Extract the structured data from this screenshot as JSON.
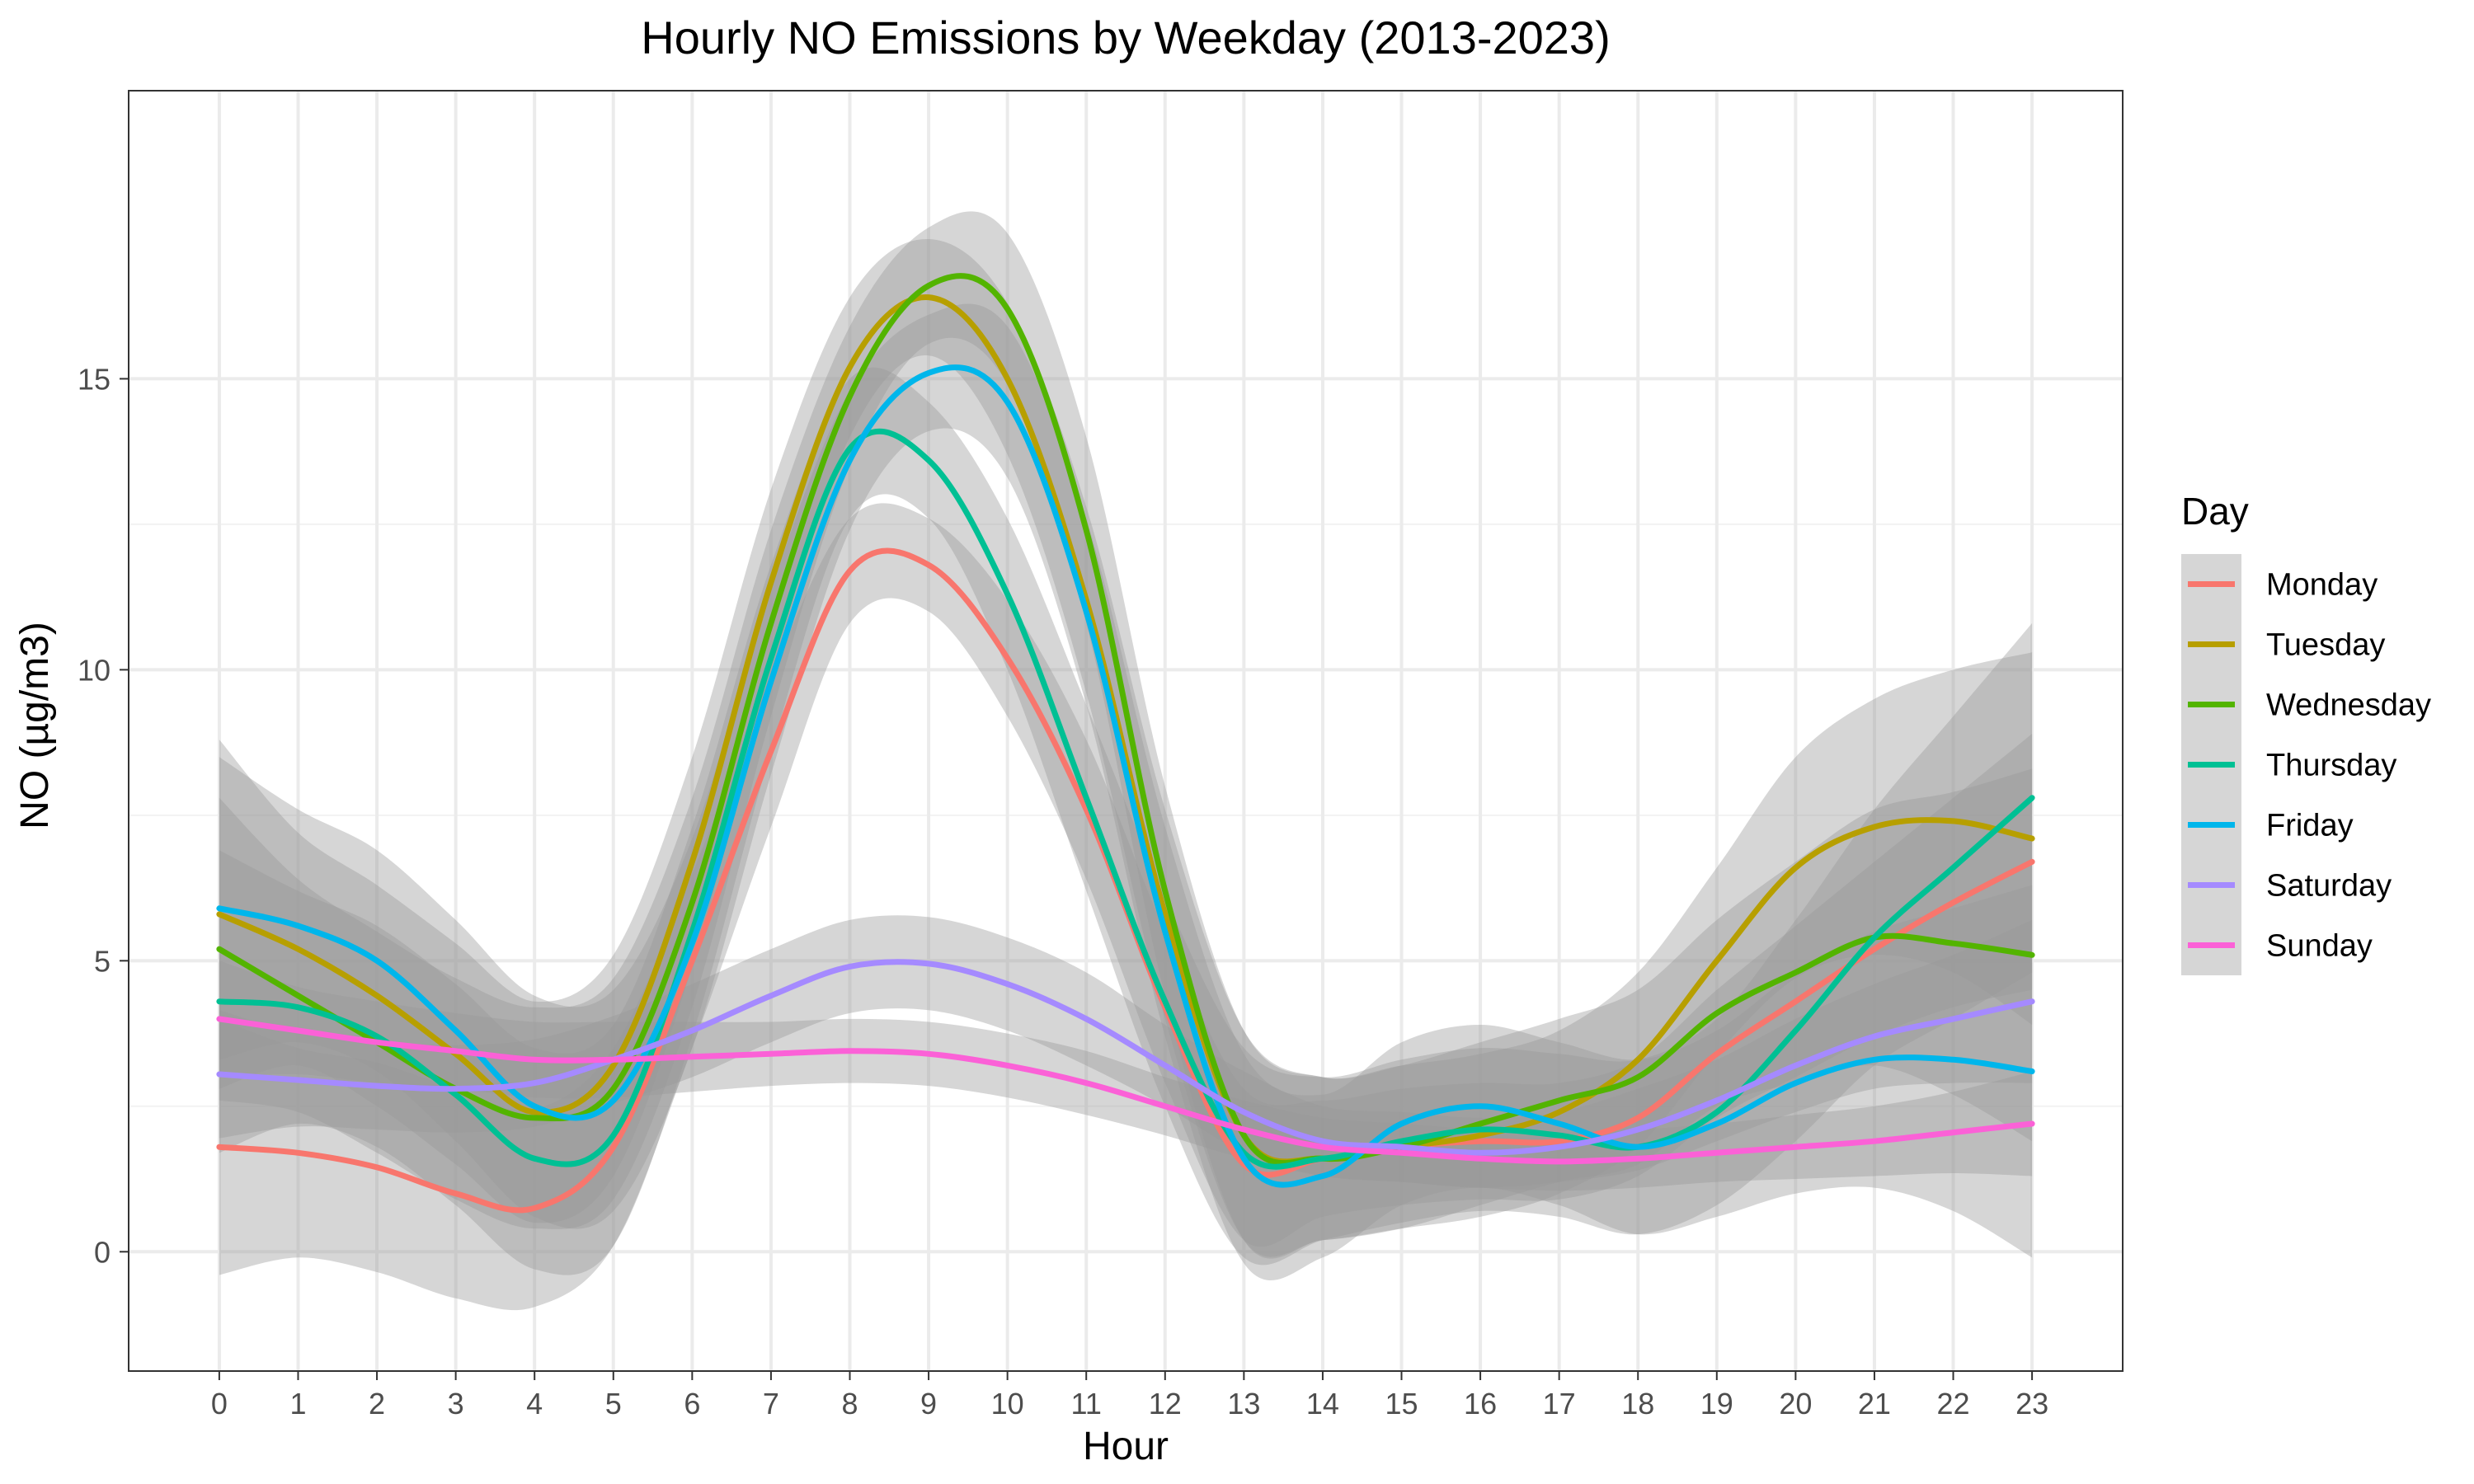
{
  "chart_data": {
    "type": "line",
    "title": "Hourly NO Emissions by Weekday (2013-2023)",
    "xlabel": "Hour",
    "ylabel": "NO (µg/m3)",
    "x": [
      0,
      1,
      2,
      3,
      4,
      5,
      6,
      7,
      8,
      9,
      10,
      11,
      12,
      13,
      14,
      15,
      16,
      17,
      18,
      19,
      20,
      21,
      22,
      23
    ],
    "xlim": [
      -1.15,
      24.15
    ],
    "ylim": [
      -2.05,
      19.95
    ],
    "yticks": [
      0,
      5,
      10,
      15
    ],
    "grid": true,
    "legend_title": "Day",
    "legend_position": "right",
    "confidence_band_color": "#999999",
    "series": [
      {
        "name": "Monday",
        "color": "#F8766D",
        "values": [
          1.8,
          1.7,
          1.45,
          1.0,
          0.75,
          1.8,
          5.0,
          8.6,
          11.7,
          11.8,
          10.2,
          7.6,
          4.2,
          1.5,
          1.6,
          1.8,
          1.9,
          1.9,
          2.3,
          3.4,
          4.3,
          5.2,
          6.0,
          6.7
        ],
        "half_width": [
          2.2,
          1.8,
          1.8,
          1.8,
          1.7,
          1.7,
          1.5,
          1.3,
          0.9,
          0.8,
          1.0,
          1.2,
          1.3,
          1.3,
          1.0,
          1.0,
          1.0,
          1.0,
          1.0,
          1.1,
          1.3,
          1.5,
          1.8,
          2.2
        ]
      },
      {
        "name": "Tuesday",
        "color": "#B79F00",
        "values": [
          5.8,
          5.2,
          4.4,
          3.4,
          2.4,
          3.2,
          6.7,
          11.5,
          15.2,
          16.4,
          15.0,
          11.2,
          5.8,
          2.0,
          1.6,
          1.8,
          2.0,
          2.4,
          3.3,
          5.0,
          6.6,
          7.3,
          7.4,
          7.1
        ],
        "half_width": [
          3.0,
          2.0,
          1.9,
          1.9,
          1.9,
          1.9,
          1.8,
          1.6,
          1.2,
          1.0,
          1.3,
          1.6,
          1.8,
          1.8,
          1.4,
          1.4,
          1.4,
          1.4,
          1.5,
          1.6,
          1.9,
          2.2,
          2.6,
          3.2
        ]
      },
      {
        "name": "Wednesday",
        "color": "#53B400",
        "values": [
          5.2,
          4.4,
          3.6,
          2.8,
          2.3,
          2.8,
          6.0,
          10.8,
          14.7,
          16.6,
          16.2,
          12.4,
          6.2,
          2.0,
          1.6,
          1.8,
          2.2,
          2.6,
          3.0,
          4.1,
          4.8,
          5.4,
          5.3,
          5.1
        ],
        "half_width": [
          2.6,
          2.0,
          1.9,
          1.9,
          1.9,
          1.9,
          1.8,
          1.6,
          1.2,
          1.0,
          1.3,
          1.6,
          1.8,
          1.8,
          1.4,
          1.4,
          1.4,
          1.4,
          1.5,
          1.6,
          1.9,
          2.2,
          2.6,
          3.2
        ]
      },
      {
        "name": "Thursday",
        "color": "#00C094",
        "values": [
          4.3,
          4.2,
          3.7,
          2.7,
          1.6,
          2.0,
          5.5,
          10.2,
          13.8,
          13.6,
          11.3,
          7.8,
          4.3,
          1.7,
          1.6,
          1.9,
          2.1,
          2.0,
          1.8,
          2.4,
          3.8,
          5.4,
          6.6,
          7.8
        ],
        "half_width": [
          2.6,
          2.0,
          1.9,
          1.9,
          1.9,
          1.9,
          1.8,
          1.6,
          1.2,
          1.0,
          1.3,
          1.6,
          1.8,
          1.8,
          1.4,
          1.4,
          1.4,
          1.4,
          1.5,
          1.6,
          1.9,
          2.2,
          2.6,
          3.0
        ]
      },
      {
        "name": "Friday",
        "color": "#00B6EB",
        "values": [
          5.9,
          5.6,
          5.0,
          3.8,
          2.5,
          2.6,
          5.3,
          9.8,
          13.6,
          15.1,
          14.6,
          11.0,
          5.5,
          1.6,
          1.3,
          2.2,
          2.5,
          2.2,
          1.8,
          2.2,
          2.9,
          3.3,
          3.3,
          3.1
        ],
        "half_width": [
          2.6,
          2.0,
          1.9,
          1.9,
          1.9,
          1.9,
          1.8,
          1.6,
          1.2,
          1.0,
          1.3,
          1.6,
          1.8,
          1.8,
          1.4,
          1.4,
          1.4,
          1.4,
          1.5,
          1.6,
          1.9,
          2.2,
          2.6,
          3.2
        ]
      },
      {
        "name": "Saturday",
        "color": "#A58AFF",
        "values": [
          3.05,
          2.95,
          2.85,
          2.8,
          2.9,
          3.3,
          3.8,
          4.4,
          4.9,
          4.95,
          4.6,
          4.0,
          3.2,
          2.4,
          1.9,
          1.8,
          1.7,
          1.8,
          2.1,
          2.6,
          3.2,
          3.7,
          4.0,
          4.3
        ],
        "half_width": [
          1.1,
          0.8,
          0.75,
          0.75,
          0.75,
          0.75,
          0.8,
          0.8,
          0.8,
          0.8,
          0.8,
          0.8,
          0.7,
          0.7,
          0.6,
          0.6,
          0.6,
          0.6,
          0.7,
          0.7,
          0.8,
          0.9,
          1.1,
          1.4
        ]
      },
      {
        "name": "Sunday",
        "color": "#FB61D7",
        "values": [
          4.0,
          3.8,
          3.6,
          3.45,
          3.3,
          3.3,
          3.35,
          3.4,
          3.45,
          3.4,
          3.2,
          2.9,
          2.5,
          2.1,
          1.8,
          1.7,
          1.6,
          1.55,
          1.6,
          1.7,
          1.8,
          1.9,
          2.05,
          2.2
        ],
        "half_width": [
          1.0,
          0.75,
          0.7,
          0.65,
          0.65,
          0.65,
          0.6,
          0.55,
          0.55,
          0.55,
          0.55,
          0.55,
          0.5,
          0.5,
          0.5,
          0.5,
          0.5,
          0.5,
          0.5,
          0.5,
          0.55,
          0.6,
          0.7,
          0.9
        ]
      }
    ]
  }
}
